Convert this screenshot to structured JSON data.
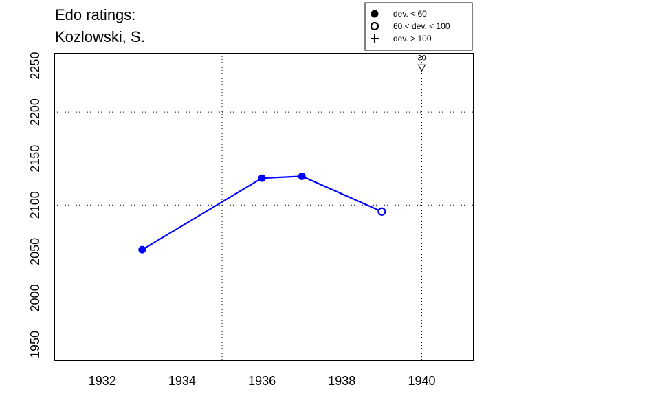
{
  "chart_data": {
    "type": "line",
    "title_lines": [
      "Edo ratings:",
      "Kozlowski, S."
    ],
    "xlabel": "",
    "ylabel": "",
    "xlim": [
      1930.8,
      1941.3
    ],
    "ylim": [
      1933,
      2263
    ],
    "x_ticks": [
      1932,
      1934,
      1936,
      1938,
      1940
    ],
    "y_ticks": [
      1950,
      2000,
      2050,
      2100,
      2150,
      2200,
      2250
    ],
    "grid_x": [
      1935,
      1940
    ],
    "grid_y": [
      2000,
      2100,
      2200
    ],
    "grid": "dotted",
    "legend_position": "top-right",
    "legend": [
      {
        "label": "dev. < 60",
        "marker": "filled-circle"
      },
      {
        "label": "60 < dev. < 100",
        "marker": "open-circle"
      },
      {
        "label": "dev. > 100",
        "marker": "plus"
      }
    ],
    "series": [
      {
        "color": "#0000ff",
        "points": [
          {
            "x": 1933,
            "y": 2052,
            "marker": "filled-circle"
          },
          {
            "x": 1936,
            "y": 2129,
            "marker": "filled-circle"
          },
          {
            "x": 1937,
            "y": 2131,
            "marker": "filled-circle"
          },
          {
            "x": 1939,
            "y": 2093,
            "marker": "open-circle"
          }
        ]
      }
    ],
    "annotations": [
      {
        "x": 1940,
        "y": 2248,
        "marker": "triangle-down",
        "label": "30"
      }
    ]
  }
}
